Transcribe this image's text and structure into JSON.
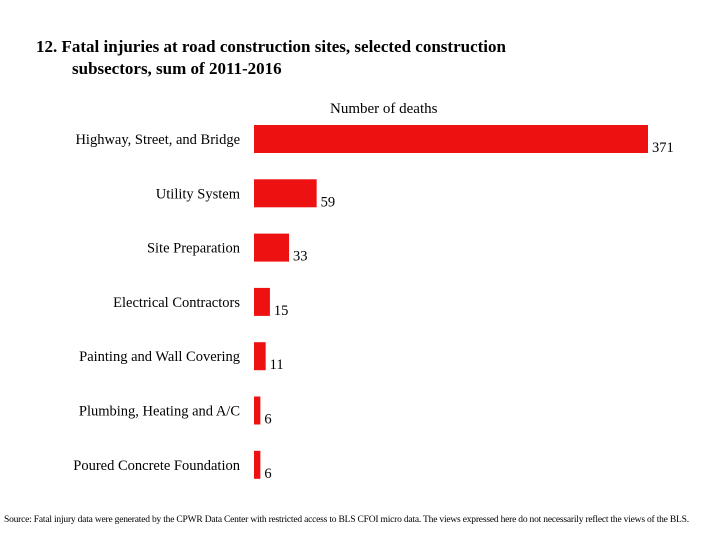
{
  "title_line1": "12. Fatal injuries at road construction sites, selected construction",
  "title_line2": "subsectors, sum of 2011-2016",
  "source": "Source: Fatal injury data were generated by the CPWR Data Center with restricted access to BLS CFOI micro data.  The views expressed here do not necessarily reflect the views of the BLS.",
  "chart_data": {
    "type": "bar",
    "orientation": "horizontal",
    "title": "12. Fatal injuries at road construction sites, selected construction subsectors, sum of 2011-2016",
    "xlabel": "Number of deaths",
    "ylabel": "",
    "xlim": [
      0,
      371
    ],
    "grid": false,
    "legend": "none",
    "bar_color": "#ee1111",
    "categories": [
      "Highway, Street, and Bridge",
      "Utility System",
      "Site Preparation",
      "Electrical Contractors",
      "Painting and Wall Covering",
      "Plumbing, Heating and A/C",
      "Poured Concrete Foundation"
    ],
    "values": [
      371,
      59,
      33,
      15,
      11,
      6,
      6
    ],
    "value_labels": [
      "371",
      "59",
      "33",
      "15",
      "11",
      "6",
      "6"
    ]
  }
}
